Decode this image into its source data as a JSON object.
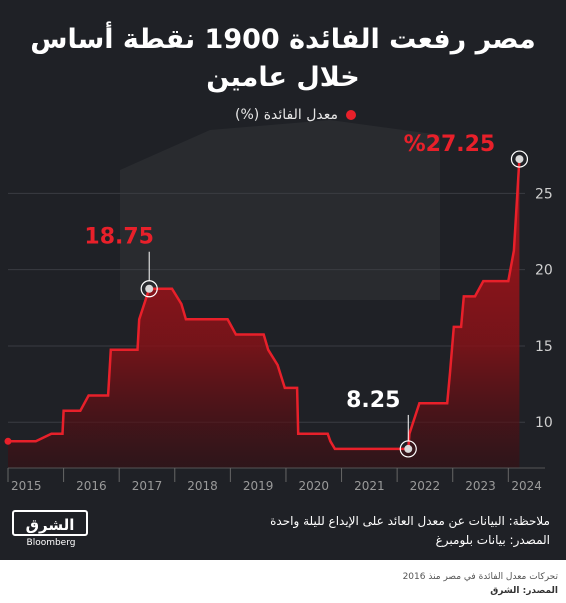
{
  "title_line1": "مصر رفعت الفائدة 1900 نقطة أساس",
  "title_line2": "خلال عامين",
  "legend_label": "معدل الفائدة (%)",
  "colors": {
    "background": "#1f2126",
    "line": "#e8202a",
    "text": "#ffffff"
  },
  "chart_data": {
    "type": "area",
    "series": [
      {
        "name": "معدل الفائدة (%)",
        "points": [
          [
            2015.0,
            8.75
          ],
          [
            2015.5,
            8.75
          ],
          [
            2015.78,
            9.25
          ],
          [
            2015.98,
            9.25
          ],
          [
            2016.0,
            10.75
          ],
          [
            2016.3,
            10.75
          ],
          [
            2016.45,
            11.75
          ],
          [
            2016.8,
            11.75
          ],
          [
            2016.85,
            14.75
          ],
          [
            2017.33,
            14.75
          ],
          [
            2017.36,
            16.75
          ],
          [
            2017.54,
            18.75
          ],
          [
            2017.95,
            18.75
          ],
          [
            2018.12,
            17.75
          ],
          [
            2018.2,
            16.75
          ],
          [
            2018.95,
            16.75
          ],
          [
            2019.1,
            15.75
          ],
          [
            2019.6,
            15.75
          ],
          [
            2019.68,
            14.75
          ],
          [
            2019.85,
            13.75
          ],
          [
            2019.98,
            12.25
          ],
          [
            2020.2,
            12.25
          ],
          [
            2020.22,
            9.25
          ],
          [
            2020.75,
            9.25
          ],
          [
            2020.8,
            8.75
          ],
          [
            2020.88,
            8.25
          ],
          [
            2022.2,
            8.25
          ],
          [
            2022.22,
            9.25
          ],
          [
            2022.4,
            11.25
          ],
          [
            2022.9,
            11.25
          ],
          [
            2022.95,
            13.25
          ],
          [
            2023.02,
            16.25
          ],
          [
            2023.15,
            16.25
          ],
          [
            2023.2,
            18.25
          ],
          [
            2023.4,
            18.25
          ],
          [
            2023.55,
            19.25
          ],
          [
            2024.0,
            19.25
          ],
          [
            2024.1,
            21.25
          ],
          [
            2024.2,
            27.25
          ]
        ]
      }
    ],
    "x_ticks": [
      2015,
      2016,
      2017,
      2018,
      2019,
      2020,
      2021,
      2022,
      2023,
      2024
    ],
    "y_ticks": [
      10,
      15,
      20,
      25
    ],
    "xlim": [
      2015,
      2024.3
    ],
    "ylim": [
      7,
      28.5
    ],
    "annotations": [
      {
        "label": "18.75",
        "x": 2017.54,
        "y": 18.75
      },
      {
        "label": "8.25",
        "x": 2022.2,
        "y": 8.25
      },
      {
        "label": "%27.25",
        "x": 2024.2,
        "y": 27.25
      }
    ]
  },
  "footer": {
    "note_line": "ملاحظة: البيانات عن معدل العائد على الإيداع لليلة واحدة",
    "source_line": "المصدر: بيانات بلومبرغ",
    "logo_text": "الشرق",
    "logo_sub": "Bloomberg"
  },
  "caption": {
    "line1": "تحركات معدل الفائدة في مصر منذ 2016",
    "line2": "المصدر: الشرق"
  }
}
